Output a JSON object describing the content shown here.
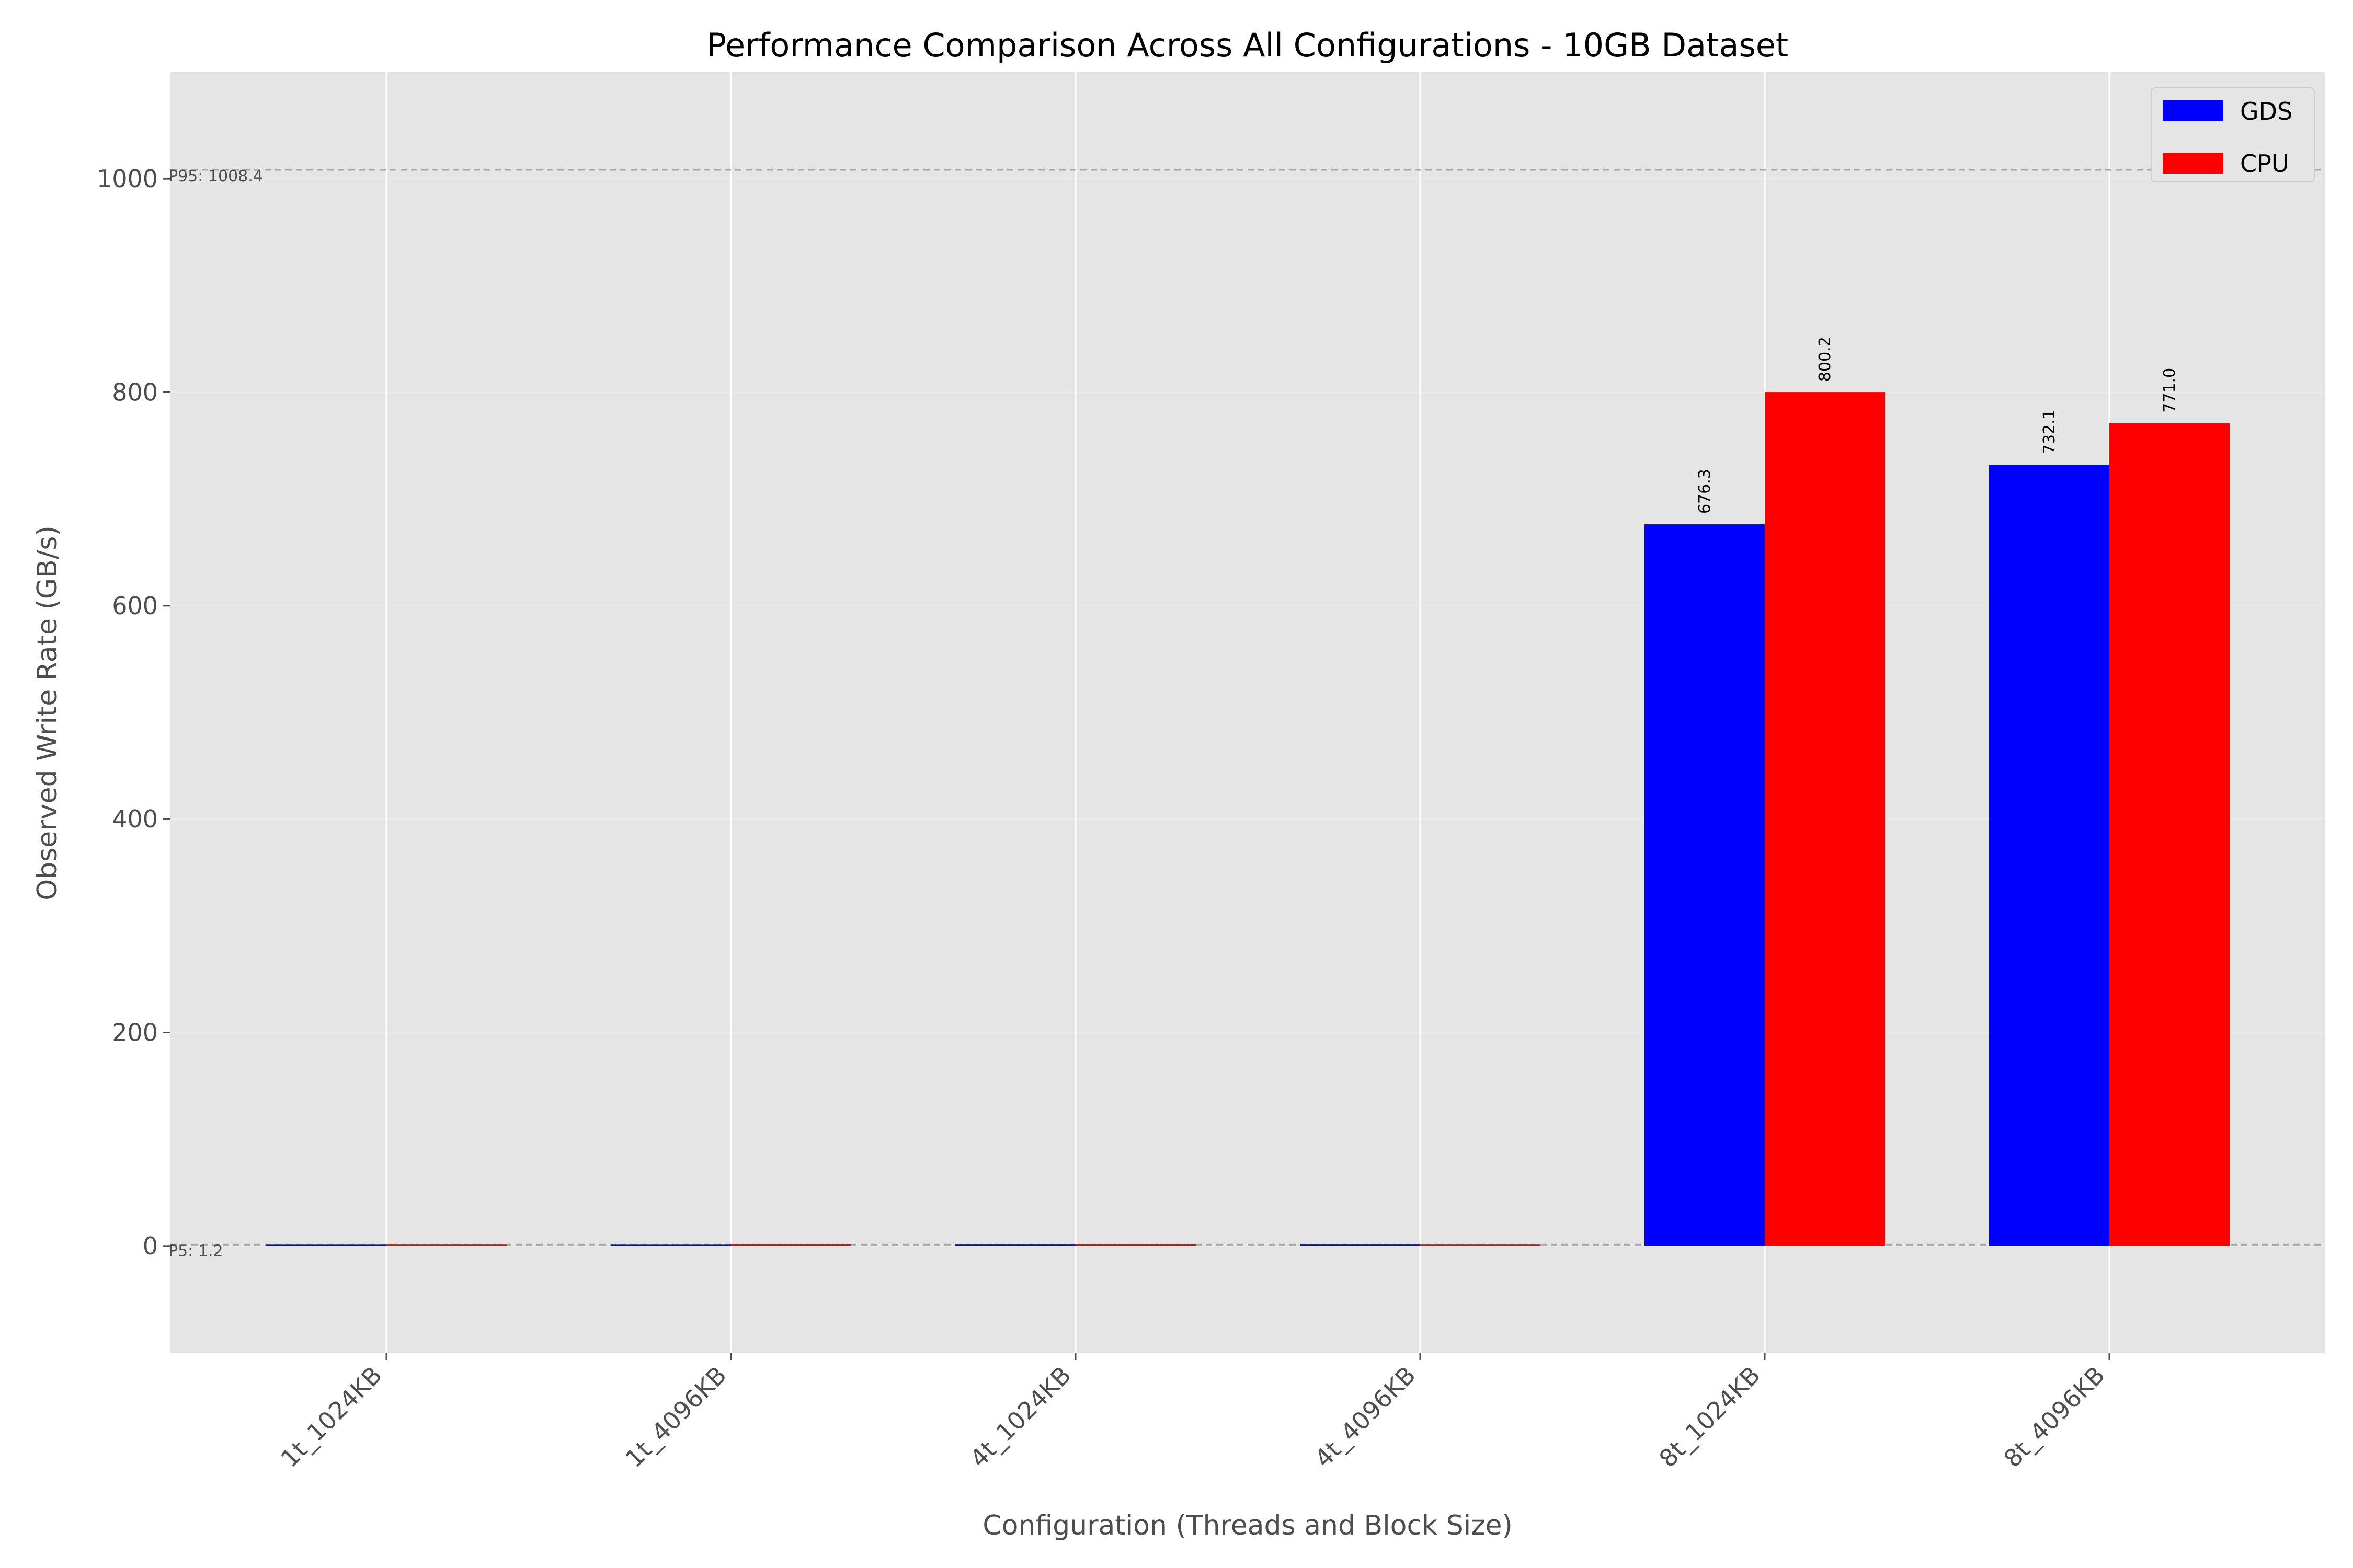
{
  "chart_data": {
    "type": "bar",
    "title": "Performance Comparison Across All Configurations - 10GB Dataset",
    "xlabel": "Configuration (Threads and Block Size)",
    "ylabel": "Observed Write Rate (GB/s)",
    "categories": [
      "1t_1024KB",
      "1t_4096KB",
      "4t_1024KB",
      "4t_4096KB",
      "8t_1024KB",
      "8t_4096KB"
    ],
    "series": [
      {
        "name": "GDS",
        "color": "#0000ff",
        "values": [
          1.2,
          1.2,
          1.3,
          1.3,
          676.3,
          732.1
        ]
      },
      {
        "name": "CPU",
        "color": "#ff0000",
        "values": [
          1.3,
          1.4,
          1.4,
          1.3,
          800.2,
          771.0
        ]
      }
    ],
    "data_labels": [
      {
        "series": "GDS",
        "category": "8t_1024KB",
        "text": "676.3"
      },
      {
        "series": "CPU",
        "category": "8t_1024KB",
        "text": "800.2"
      },
      {
        "series": "GDS",
        "category": "8t_4096KB",
        "text": "732.1"
      },
      {
        "series": "CPU",
        "category": "8t_4096KB",
        "text": "771.0"
      }
    ],
    "reference_lines": [
      {
        "value": 1008.4,
        "label": "P95: 1008.4"
      },
      {
        "value": 1.2,
        "label": "P5: 1.2"
      }
    ],
    "ylim": [
      -100,
      1100
    ],
    "yticks": [
      0,
      200,
      400,
      600,
      800,
      1000
    ],
    "grid": true,
    "legend_position": "top-right",
    "background_color": "#e5e5e5"
  }
}
